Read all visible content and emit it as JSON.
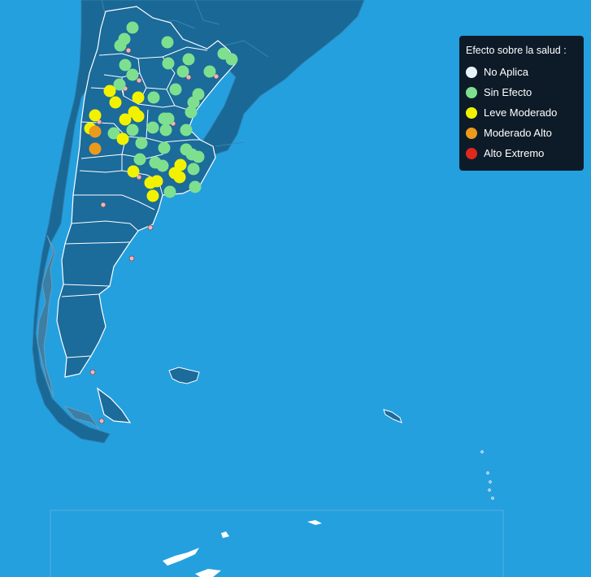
{
  "legend": {
    "title": "Efecto sobre la salud :",
    "items": [
      {
        "key": "no-aplica",
        "label": "No Aplica",
        "color": "#e8f4fb"
      },
      {
        "key": "sin-efecto",
        "label": "Sin Efecto",
        "color": "#7ee08f"
      },
      {
        "key": "leve-moderado",
        "label": "Leve Moderado",
        "color": "#f2f200"
      },
      {
        "key": "moderado-alto",
        "label": "Moderado Alto",
        "color": "#eb9a1c"
      },
      {
        "key": "alto-extremo",
        "label": "Alto Extremo",
        "color": "#e0281c"
      }
    ]
  },
  "colors": {
    "ocean": "#24a0df",
    "land": "#1b6b9b",
    "border": "#ffffff",
    "city": "#d8a0a8"
  }
}
